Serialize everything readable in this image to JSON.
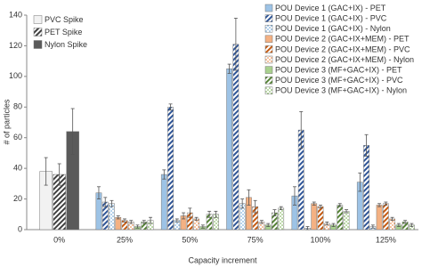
{
  "chart_data": {
    "type": "bar",
    "x_label": "Capacity increment",
    "y_label": "# of particles",
    "categories": [
      "0%",
      "25%",
      "50%",
      "75%",
      "100%",
      "125%"
    ],
    "ylim": [
      0,
      140
    ],
    "yticks": [
      0,
      20,
      40,
      60,
      80,
      100,
      120,
      140
    ],
    "grid": false,
    "series": [
      {
        "name": "PVC Spike",
        "color": "#f2f2f2",
        "pattern": "solid",
        "values": [
          38,
          null,
          null,
          null,
          null,
          null
        ],
        "errors": [
          9,
          null,
          null,
          null,
          null,
          null
        ]
      },
      {
        "name": "PET Spike",
        "color": "#404040",
        "pattern": "hatch",
        "values": [
          36,
          null,
          null,
          null,
          null,
          null
        ],
        "errors": [
          7,
          null,
          null,
          null,
          null,
          null
        ]
      },
      {
        "name": "Nylon Spike",
        "color": "#5a5a5a",
        "pattern": "solid",
        "values": [
          64,
          null,
          null,
          null,
          null,
          null
        ],
        "errors": [
          15,
          null,
          null,
          null,
          null,
          null
        ]
      },
      {
        "name": "POU Device 1 (GAC+IX) - PET",
        "color": "#9dc3e6",
        "pattern": "solid",
        "values": [
          null,
          24,
          36,
          105,
          22,
          31
        ],
        "errors": [
          null,
          4,
          3,
          3,
          6,
          6
        ]
      },
      {
        "name": "POU Device 1 (GAC+IX) - PVC",
        "color": "#2f5597",
        "pattern": "hatch",
        "values": [
          null,
          18,
          80,
          121,
          65,
          55
        ],
        "errors": [
          null,
          3,
          2,
          17,
          12,
          7
        ]
      },
      {
        "name": "POU Device 1 (GAC+IX) - Nylon",
        "color": "#5b9bd5",
        "pattern": "dots",
        "values": [
          null,
          17,
          6,
          17,
          1,
          2
        ],
        "errors": [
          null,
          2,
          1,
          3,
          1,
          1
        ]
      },
      {
        "name": "POU Device 2 (GAC+IX+MEM) - PET",
        "color": "#f4b183",
        "pattern": "solid",
        "values": [
          null,
          8,
          9,
          21,
          17,
          16
        ],
        "errors": [
          null,
          1,
          2,
          5,
          1,
          1
        ]
      },
      {
        "name": "POU Device 2 (GAC+IX+MEM) - PVC",
        "color": "#c55a11",
        "pattern": "hatch",
        "values": [
          null,
          6,
          11,
          15,
          15,
          17
        ],
        "errors": [
          null,
          1,
          3,
          4,
          1,
          1
        ]
      },
      {
        "name": "POU Device 2 (GAC+IX+MEM) - Nylon",
        "color": "#ed7d31",
        "pattern": "dots",
        "values": [
          null,
          5,
          7,
          5,
          4,
          7
        ],
        "errors": [
          null,
          1,
          1,
          1,
          1,
          1
        ]
      },
      {
        "name": "POU Device 3 (MF+GAC+IX) - PET",
        "color": "#a9d18e",
        "pattern": "solid",
        "values": [
          null,
          2,
          2,
          3,
          3,
          3
        ],
        "errors": [
          null,
          1,
          1,
          1,
          1,
          1
        ]
      },
      {
        "name": "POU Device 3 (MF+GAC+IX) - PVC",
        "color": "#548235",
        "pattern": "hatch",
        "values": [
          null,
          5,
          10,
          11,
          16,
          5
        ],
        "errors": [
          null,
          1,
          2,
          2,
          1,
          1
        ]
      },
      {
        "name": "POU Device 3 (MF+GAC+IX) - Nylon",
        "color": "#70ad47",
        "pattern": "dots",
        "values": [
          null,
          6,
          10,
          14,
          12,
          3
        ],
        "errors": [
          null,
          2,
          2,
          1,
          1,
          1
        ]
      }
    ]
  }
}
